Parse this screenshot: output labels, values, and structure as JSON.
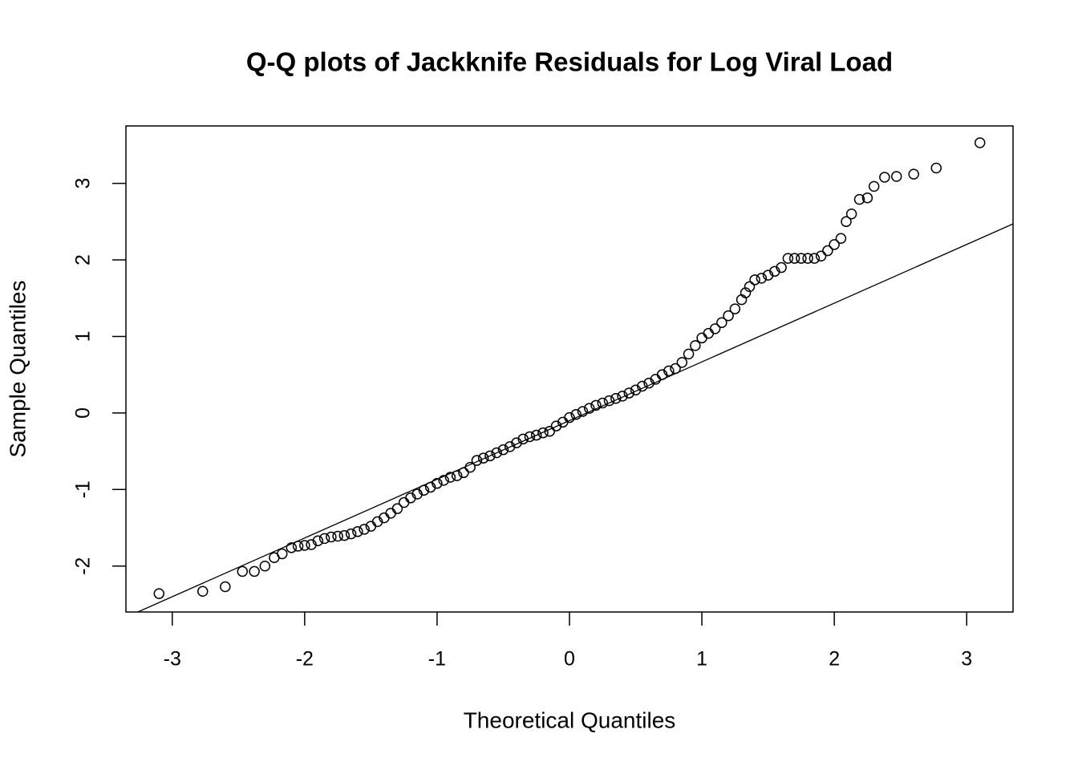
{
  "chart_data": {
    "type": "scatter",
    "title": "Q-Q plots of Jackknife Residuals for Log Viral Load",
    "xlabel": "Theoretical Quantiles",
    "ylabel": "Sample Quantiles",
    "xlim": [
      -3.35,
      3.35
    ],
    "ylim": [
      -2.6,
      3.75
    ],
    "xticks": [
      -3,
      -2,
      -1,
      0,
      1,
      2,
      3
    ],
    "yticks": [
      -2,
      -1,
      0,
      1,
      2,
      3
    ],
    "color": "#000000",
    "x": [
      -3.1,
      -2.77,
      -2.6,
      -2.47,
      -2.38,
      -2.3,
      -2.23,
      -2.17,
      -2.1,
      -2.05,
      -2.0,
      -1.95,
      -1.9,
      -1.85,
      -1.8,
      -1.75,
      -1.7,
      -1.65,
      -1.6,
      -1.55,
      -1.5,
      -1.45,
      -1.4,
      -1.35,
      -1.3,
      -1.25,
      -1.2,
      -1.15,
      -1.1,
      -1.05,
      -1.0,
      -0.95,
      -0.9,
      -0.85,
      -0.8,
      -0.75,
      -0.7,
      -0.65,
      -0.6,
      -0.55,
      -0.5,
      -0.45,
      -0.4,
      -0.35,
      -0.3,
      -0.25,
      -0.2,
      -0.15,
      -0.1,
      -0.05,
      0,
      0.05,
      0.1,
      0.15,
      0.2,
      0.25,
      0.3,
      0.35,
      0.4,
      0.45,
      0.5,
      0.55,
      0.6,
      0.65,
      0.7,
      0.75,
      0.8,
      0.85,
      0.9,
      0.95,
      1.0,
      1.05,
      1.1,
      1.15,
      1.2,
      1.25,
      1.3,
      1.33,
      1.36,
      1.4,
      1.45,
      1.5,
      1.55,
      1.6,
      1.65,
      1.7,
      1.75,
      1.8,
      1.85,
      1.9,
      1.95,
      2.0,
      2.05,
      2.09,
      2.13,
      2.19,
      2.25,
      2.3,
      2.38,
      2.47,
      2.6,
      2.77,
      3.1
    ],
    "values": [
      -2.36,
      -2.33,
      -2.27,
      -2.07,
      -2.07,
      -2.0,
      -1.89,
      -1.84,
      -1.76,
      -1.74,
      -1.73,
      -1.72,
      -1.67,
      -1.64,
      -1.62,
      -1.61,
      -1.6,
      -1.58,
      -1.55,
      -1.52,
      -1.48,
      -1.42,
      -1.37,
      -1.31,
      -1.25,
      -1.17,
      -1.11,
      -1.06,
      -1.01,
      -0.97,
      -0.92,
      -0.88,
      -0.84,
      -0.82,
      -0.78,
      -0.71,
      -0.62,
      -0.59,
      -0.56,
      -0.52,
      -0.48,
      -0.44,
      -0.39,
      -0.34,
      -0.31,
      -0.29,
      -0.26,
      -0.24,
      -0.17,
      -0.12,
      -0.06,
      -0.02,
      0.02,
      0.06,
      0.1,
      0.13,
      0.16,
      0.19,
      0.22,
      0.26,
      0.3,
      0.35,
      0.39,
      0.44,
      0.5,
      0.55,
      0.58,
      0.66,
      0.77,
      0.88,
      0.98,
      1.04,
      1.1,
      1.18,
      1.27,
      1.36,
      1.48,
      1.57,
      1.65,
      1.74,
      1.76,
      1.8,
      1.85,
      1.9,
      2.02,
      2.02,
      2.02,
      2.02,
      2.02,
      2.05,
      2.12,
      2.2,
      2.28,
      2.5,
      2.6,
      2.79,
      2.81,
      2.96,
      3.08,
      3.09,
      3.12,
      3.2,
      3.53
    ],
    "reference_line": {
      "x": [
        -3.26,
        3.35
      ],
      "y": [
        -2.6,
        2.47
      ]
    }
  }
}
